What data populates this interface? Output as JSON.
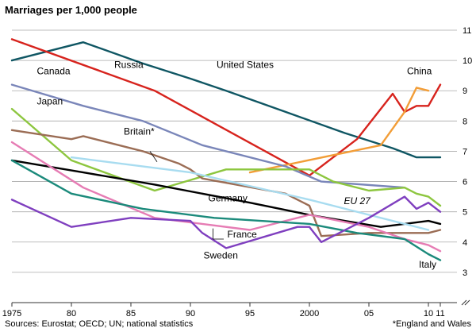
{
  "chart_data": {
    "type": "line",
    "title": "Marriages per 1,000 people",
    "xlabel": "",
    "ylabel": "",
    "xlim": [
      1975,
      2012
    ],
    "ylim": [
      2,
      11
    ],
    "y_ticks": [
      3,
      4,
      5,
      6,
      7,
      8,
      9,
      10,
      11
    ],
    "x_ticks": [
      {
        "value": 1975,
        "label": "1975"
      },
      {
        "value": 1980,
        "label": "80"
      },
      {
        "value": 1985,
        "label": "85"
      },
      {
        "value": 1990,
        "label": "90"
      },
      {
        "value": 1995,
        "label": "95"
      },
      {
        "value": 2000,
        "label": "2000"
      },
      {
        "value": 2005,
        "label": "05"
      },
      {
        "value": 2010,
        "label": "10"
      },
      {
        "value": 2011,
        "label": "11"
      }
    ],
    "grid": true,
    "series": [
      {
        "name": "United States",
        "color": "#0f5663",
        "x": [
          1975,
          1981,
          1986,
          1990,
          1993,
          1998,
          2003,
          2007,
          2009,
          2011
        ],
        "y": [
          10.0,
          10.6,
          9.9,
          9.4,
          9.0,
          8.3,
          7.6,
          7.1,
          6.8,
          6.8
        ]
      },
      {
        "name": "Russia",
        "color": "#d7231d",
        "x": [
          1975,
          1987,
          2000,
          2004,
          2007,
          2008,
          2009,
          2010,
          2011
        ],
        "y": [
          10.7,
          9.0,
          6.2,
          7.4,
          8.9,
          8.3,
          8.5,
          8.5,
          9.2
        ]
      },
      {
        "name": "China",
        "color": "#f29d37",
        "x": [
          1995,
          2006,
          2008,
          2009,
          2010
        ],
        "y": [
          6.3,
          7.2,
          8.3,
          9.1,
          9.0
        ]
      },
      {
        "name": "Canada",
        "color": "#7a86b9",
        "x": [
          1975,
          1981,
          1986,
          1991,
          1998,
          2001,
          2008
        ],
        "y": [
          9.2,
          8.5,
          8.0,
          7.2,
          6.5,
          6.0,
          5.8
        ]
      },
      {
        "name": "Japan",
        "color": "#8dc63f",
        "x": [
          1975,
          1980,
          1987,
          1993,
          1997,
          2000,
          2002,
          2005,
          2008,
          2009,
          2010,
          2011
        ],
        "y": [
          8.4,
          6.7,
          5.7,
          6.4,
          6.4,
          6.4,
          6.0,
          5.7,
          5.8,
          5.6,
          5.5,
          5.2
        ]
      },
      {
        "name": "Britain*",
        "color": "#9b6d55",
        "x": [
          1975,
          1980,
          1981,
          1986,
          1989,
          1990,
          1991,
          1998,
          2000,
          2001,
          2005,
          2008,
          2010,
          2011
        ],
        "y": [
          7.7,
          7.4,
          7.5,
          7.0,
          6.6,
          6.4,
          6.1,
          5.6,
          5.2,
          4.2,
          4.3,
          4.3,
          4.3,
          4.4
        ]
      },
      {
        "name": "Germany",
        "color": "#000000",
        "x": [
          1975,
          1981,
          1987,
          1995,
          2000,
          2006,
          2008,
          2010,
          2011
        ],
        "y": [
          6.7,
          6.3,
          5.9,
          5.3,
          4.9,
          4.5,
          4.6,
          4.7,
          4.6
        ]
      },
      {
        "name": "EU 27",
        "color": "#a8dcf0",
        "x": [
          1980,
          1990,
          2000,
          2005,
          2010
        ],
        "y": [
          6.8,
          6.3,
          5.4,
          4.9,
          4.4
        ]
      },
      {
        "name": "France",
        "color": "#e67cb4",
        "x": [
          1975,
          1981,
          1987,
          1995,
          2000,
          2005,
          2008,
          2010,
          2011
        ],
        "y": [
          7.3,
          5.8,
          4.8,
          4.4,
          4.9,
          4.5,
          4.1,
          3.9,
          3.7
        ]
      },
      {
        "name": "Italy",
        "color": "#1b8a7b",
        "x": [
          1975,
          1980,
          1986,
          1992,
          2000,
          2004,
          2008,
          2010,
          2011
        ],
        "y": [
          6.7,
          5.6,
          5.1,
          4.8,
          4.6,
          4.3,
          4.1,
          3.6,
          3.4
        ]
      },
      {
        "name": "Sweden",
        "color": "#7f3fbf",
        "x": [
          1975,
          1980,
          1985,
          1990,
          1991,
          1993,
          1999,
          2000,
          2001,
          2005,
          2008,
          2009,
          2010,
          2011
        ],
        "y": [
          5.4,
          4.5,
          4.8,
          4.7,
          4.3,
          3.8,
          4.5,
          4.5,
          4.0,
          4.8,
          5.5,
          5.1,
          5.3,
          5.0
        ]
      }
    ],
    "labels": [
      {
        "name": "Russia",
        "text": "Russia",
        "x": 1983.6,
        "y": 9.75,
        "italic": false
      },
      {
        "name": "United States",
        "text": "United States",
        "x": 1992.2,
        "y": 9.75,
        "italic": false
      },
      {
        "name": "China",
        "text": "China",
        "x": 2008.2,
        "y": 9.55,
        "italic": false
      },
      {
        "name": "Canada",
        "text": "Canada",
        "x": 1977.1,
        "y": 9.55,
        "italic": false
      },
      {
        "name": "Japan",
        "text": "Japan",
        "x": 1977.1,
        "y": 8.55,
        "italic": false
      },
      {
        "name": "Britain",
        "text": "Britain*",
        "x": 1984.4,
        "y": 7.55,
        "italic": false
      },
      {
        "name": "Germany",
        "text": "Germany",
        "x": 1991.5,
        "y": 5.35,
        "italic": false
      },
      {
        "name": "EU 27",
        "text": "EU 27",
        "x": 2002.9,
        "y": 5.25,
        "italic": true
      },
      {
        "name": "France",
        "text": "France",
        "x": 1993.1,
        "y": 4.15,
        "italic": false
      },
      {
        "name": "Sweden",
        "text": "Sweden",
        "x": 1991.1,
        "y": 3.45,
        "italic": false
      },
      {
        "name": "Italy",
        "text": "Italy",
        "x": 2009.2,
        "y": 3.15,
        "italic": false
      }
    ],
    "source": "Sources: Eurostat; OECD; UN; national statistics",
    "footnote": "*England and Wales"
  }
}
